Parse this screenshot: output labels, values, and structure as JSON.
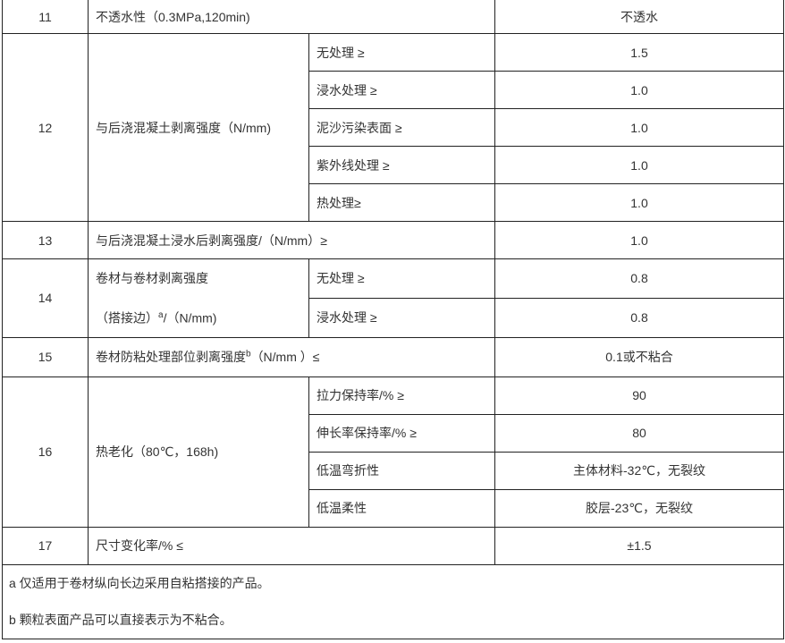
{
  "rows": {
    "r11": {
      "no": "11",
      "item": "不透水性（0.3MPa,120min)",
      "value": "不透水"
    },
    "r12": {
      "no": "12",
      "item": "与后浇混凝土剥离强度（N/mm)",
      "sub": [
        {
          "cond": "无处理 ≥",
          "value": "1.5"
        },
        {
          "cond": "浸水处理 ≥",
          "value": "1.0"
        },
        {
          "cond": "泥沙污染表面 ≥",
          "value": "1.0"
        },
        {
          "cond": "紫外线处理 ≥",
          "value": "1.0"
        },
        {
          "cond": "热处理≥",
          "value": "1.0"
        }
      ]
    },
    "r13": {
      "no": "13",
      "item": "与后浇混凝土浸水后剥离强度/（N/mm）≥",
      "value": "1.0"
    },
    "r14": {
      "no": "14",
      "item_line1": "卷材与卷材剥离强度",
      "item_line2_pre": "（搭接边）",
      "item_sup": "a",
      "item_line2_post": "/（N/mm)",
      "sub": [
        {
          "cond": "无处理 ≥",
          "value": "0.8"
        },
        {
          "cond": "浸水处理 ≥",
          "value": "0.8"
        }
      ]
    },
    "r15": {
      "no": "15",
      "item_pre": "卷材防粘处理部位剥离强度",
      "item_sup": "b",
      "item_post": "（N/mm ）≤",
      "value": "0.1或不粘合"
    },
    "r16": {
      "no": "16",
      "item": "热老化（80℃，168h)",
      "sub": [
        {
          "cond": "拉力保持率/% ≥",
          "value": "90"
        },
        {
          "cond": "伸长率保持率/% ≥",
          "value": "80"
        },
        {
          "cond": "低温弯折性",
          "value": "主体材料-32℃，无裂纹"
        },
        {
          "cond": "低温柔性",
          "value": "胶层-23℃，无裂纹"
        }
      ]
    },
    "r17": {
      "no": "17",
      "item": "尺寸变化率/% ≤",
      "value": "±1.5"
    }
  },
  "notes": [
    "a 仅适用于卷材纵向长边采用自粘搭接的产品。",
    "b 颗粒表面产品可以直接表示为不粘合。"
  ]
}
